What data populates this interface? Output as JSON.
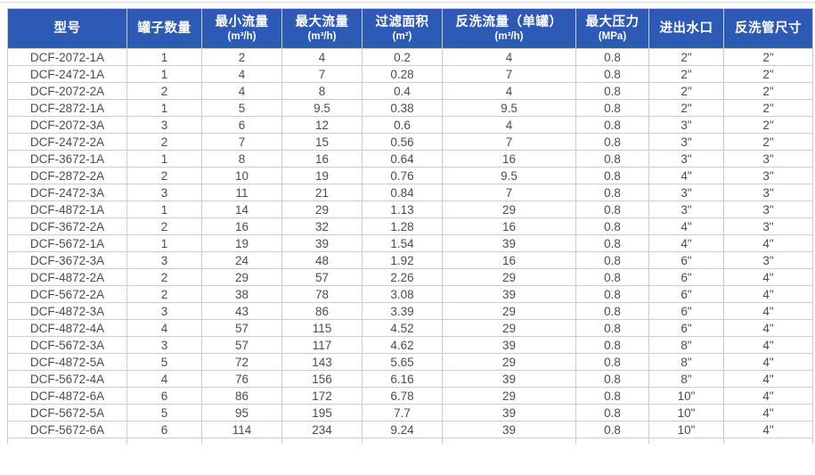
{
  "colors": {
    "header_bg": "#2d5ab4",
    "header_text": "#ffffff",
    "body_text": "#4c4c4c",
    "border": "#cccccc",
    "page_top_border": "#d9d9d9"
  },
  "table": {
    "headers": [
      {
        "label": "型号",
        "unit": ""
      },
      {
        "label": "罐子数量",
        "unit": ""
      },
      {
        "label": "最小流量",
        "unit": "(m³/h)"
      },
      {
        "label": "最大流量",
        "unit": "(m³/h)"
      },
      {
        "label": "过滤面积",
        "unit": "(m²)"
      },
      {
        "label": "反洗流量（单罐）",
        "unit": "(m³/h)"
      },
      {
        "label": "最大压力",
        "unit": "(MPa)"
      },
      {
        "label": "进出水口",
        "unit": ""
      },
      {
        "label": "反洗管尺寸",
        "unit": ""
      }
    ],
    "rows": [
      {
        "cells": [
          "DCF-2072-1A",
          "1",
          "2",
          "4",
          "0.2",
          "4",
          "0.8",
          "2\"",
          "2\""
        ]
      },
      {
        "cells": [
          "DCF-2472-1A",
          "1",
          "4",
          "7",
          "0.28",
          "7",
          "0.8",
          "2\"",
          "2\""
        ]
      },
      {
        "cells": [
          "DCF-2072-2A",
          "2",
          "4",
          "8",
          "0.4",
          "4",
          "0.8",
          "2\"",
          "2\""
        ]
      },
      {
        "cells": [
          "DCF-2872-1A",
          "1",
          "5",
          "9.5",
          "0.38",
          "9.5",
          "0.8",
          "2\"",
          "2\""
        ]
      },
      {
        "cells": [
          "DCF-2072-3A",
          "3",
          "6",
          "12",
          "0.6",
          "4",
          "0.8",
          "3\"",
          "2\""
        ]
      },
      {
        "cells": [
          "DCF-2472-2A",
          "2",
          "7",
          "15",
          "0.56",
          "7",
          "0.8",
          "3\"",
          "2\""
        ]
      },
      {
        "cells": [
          "DCF-3672-1A",
          "1",
          "8",
          "16",
          "0.64",
          "16",
          "0.8",
          "3\"",
          "3\""
        ]
      },
      {
        "cells": [
          "DCF-2872-2A",
          "2",
          "10",
          "19",
          "0.76",
          "9.5",
          "0.8",
          "4\"",
          "3\""
        ]
      },
      {
        "cells": [
          "DCF-2472-3A",
          "3",
          "11",
          "21",
          "0.84",
          "7",
          "0.8",
          "3\"",
          "3\""
        ]
      },
      {
        "cells": [
          "DCF-4872-1A",
          "1",
          "14",
          "29",
          "1.13",
          "29",
          "0.8",
          "3\"",
          "3\""
        ]
      },
      {
        "cells": [
          "DCF-3672-2A",
          "2",
          "16",
          "32",
          "1.28",
          "16",
          "0.8",
          "4\"",
          "3\""
        ]
      },
      {
        "cells": [
          "DCF-5672-1A",
          "1",
          "19",
          "39",
          "1.54",
          "39",
          "0.8",
          "4\"",
          "4\""
        ]
      },
      {
        "cells": [
          "DCF-3672-3A",
          "3",
          "24",
          "48",
          "1.92",
          "16",
          "0.8",
          "6\"",
          "3\""
        ]
      },
      {
        "cells": [
          "DCF-4872-2A",
          "2",
          "29",
          "57",
          "2.26",
          "29",
          "0.8",
          "6\"",
          "4\""
        ]
      },
      {
        "cells": [
          "DCF-5672-2A",
          "2",
          "38",
          "78",
          "3.08",
          "39",
          "0.8",
          "6\"",
          "4\""
        ]
      },
      {
        "cells": [
          "DCF-4872-3A",
          "3",
          "43",
          "86",
          "3.39",
          "29",
          "0.8",
          "6\"",
          "4\""
        ]
      },
      {
        "cells": [
          "DCF-4872-4A",
          "4",
          "57",
          "115",
          "4.52",
          "29",
          "0.8",
          "6\"",
          "4\""
        ]
      },
      {
        "cells": [
          "DCF-5672-3A",
          "3",
          "57",
          "117",
          "4.62",
          "39",
          "0.8",
          "8\"",
          "4\""
        ]
      },
      {
        "cells": [
          "DCF-4872-5A",
          "5",
          "72",
          "143",
          "5.65",
          "29",
          "0.8",
          "8\"",
          "4\""
        ]
      },
      {
        "cells": [
          "DCF-5672-4A",
          "4",
          "76",
          "156",
          "6.16",
          "39",
          "0.8",
          "8\"",
          "4\""
        ]
      },
      {
        "cells": [
          "DCF-4872-6A",
          "6",
          "86",
          "172",
          "6.78",
          "29",
          "0.8",
          "10\"",
          "4\""
        ]
      },
      {
        "cells": [
          "DCF-5672-5A",
          "5",
          "95",
          "195",
          "7.7",
          "39",
          "0.8",
          "10\"",
          "4\""
        ]
      },
      {
        "cells": [
          "DCF-5672-6A",
          "6",
          "114",
          "234",
          "9.24",
          "39",
          "0.8",
          "10\"",
          "4\""
        ]
      }
    ]
  }
}
